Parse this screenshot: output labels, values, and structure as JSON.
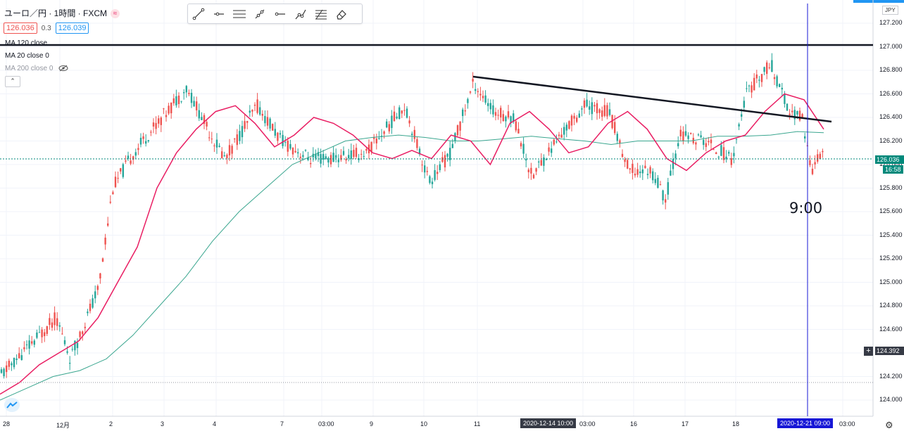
{
  "header": {
    "symbol_title": "ユーロ／円 · 1時間 · FXCM",
    "bid": "126.036",
    "spread": "0.3",
    "ask": "126.039"
  },
  "indicators": [
    {
      "label": "MA 120 close",
      "color": "#131722"
    },
    {
      "label": "MA 20 close 0",
      "color": "#131722"
    },
    {
      "label": "MA 200 close 0",
      "color": "#9598a1"
    }
  ],
  "toolbar": {
    "tools": [
      "trend-line-icon",
      "horizontal-ray-icon",
      "parallel-channel-icon",
      "pitchfork-icon",
      "horizontal-line-icon",
      "path-icon",
      "fib-icon",
      "eraser-icon"
    ]
  },
  "axis": {
    "currency": "JPY",
    "y_ticks": [
      "127.200",
      "127.000",
      "126.800",
      "126.600",
      "126.400",
      "126.200",
      "126.000",
      "125.800",
      "125.600",
      "125.400",
      "125.200",
      "125.000",
      "124.800",
      "124.600",
      "124.400",
      "124.200",
      "124.000"
    ],
    "x_ticks": [
      "28",
      "12月",
      "2",
      "3",
      "4",
      "7",
      "03:00",
      "9",
      "10",
      "11",
      "03:00",
      "16",
      "17",
      "18",
      "03:00"
    ],
    "current_price": "126.036",
    "countdown": "16:58",
    "crosshair_price": "124.392",
    "date_flag_1": "2020-12-14  10:00",
    "date_flag_2": "2020-12-21  09:00"
  },
  "annotation": {
    "text": "9:00"
  },
  "colors": {
    "up": "#26a69a",
    "down": "#ef5350",
    "ma20": "#e91e63",
    "ma200": "#3aa68f",
    "accent": "#2196f3"
  },
  "chart_data": {
    "type": "candlestick",
    "series": [
      {
        "name": "MA 20 close 0",
        "color": "#e91e63",
        "y": [
          124.05,
          124.15,
          124.3,
          124.4,
          124.5,
          124.7,
          125.0,
          125.3,
          125.8,
          126.1,
          126.3,
          126.45,
          126.5,
          126.35,
          126.15,
          126.25,
          126.4,
          126.35,
          126.25,
          126.1,
          126.05,
          126.12,
          126.05,
          126.25,
          126.2,
          126.0,
          126.35,
          126.45,
          126.3,
          126.1,
          126.15,
          126.35,
          126.45,
          126.3,
          126.05,
          125.95,
          126.1,
          126.2,
          126.25,
          126.45,
          126.6,
          126.55,
          126.3
        ]
      },
      {
        "name": "MA 200 close 0",
        "color": "#3aa68f",
        "y": [
          124.0,
          124.1,
          124.2,
          124.25,
          124.35,
          124.55,
          124.8,
          125.05,
          125.35,
          125.6,
          125.8,
          126.0,
          126.1,
          126.2,
          126.23,
          126.25,
          126.23,
          126.2,
          126.2,
          126.22,
          126.24,
          126.22,
          126.2,
          126.17,
          126.2,
          126.2,
          126.2,
          126.24,
          126.24,
          126.25,
          126.28,
          126.27
        ]
      },
      {
        "name": "MA 120 close",
        "color": "#131722",
        "y": [
          127.0,
          127.0
        ]
      }
    ],
    "trendline": {
      "x": [
        "2020-12-11",
        "2020-12-21"
      ],
      "y": [
        126.73,
        126.35
      ]
    },
    "y_axis": {
      "min": 123.9,
      "max": 127.3,
      "label": "JPY"
    }
  }
}
